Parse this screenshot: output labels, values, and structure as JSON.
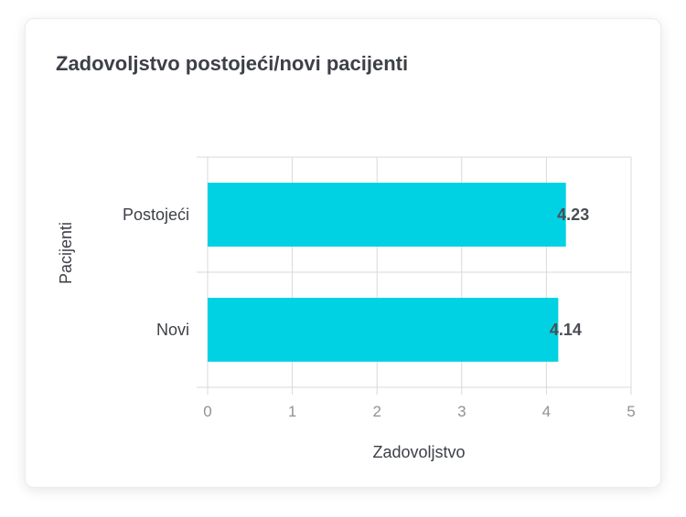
{
  "chart_data": {
    "type": "bar",
    "orientation": "horizontal",
    "title": "Zadovoljstvo postojeći/novi pacijenti",
    "xlabel": "Zadovoljstvo",
    "ylabel": "Pacijenti",
    "categories": [
      "Postojeći",
      "Novi"
    ],
    "values": [
      4.23,
      4.14
    ],
    "data_labels": [
      "4.23",
      "4.14"
    ],
    "xlim": [
      0,
      5
    ],
    "xticks": [
      "0",
      "1",
      "2",
      "3",
      "4",
      "5"
    ],
    "grid": true,
    "bar_color": "#00d2e4"
  }
}
